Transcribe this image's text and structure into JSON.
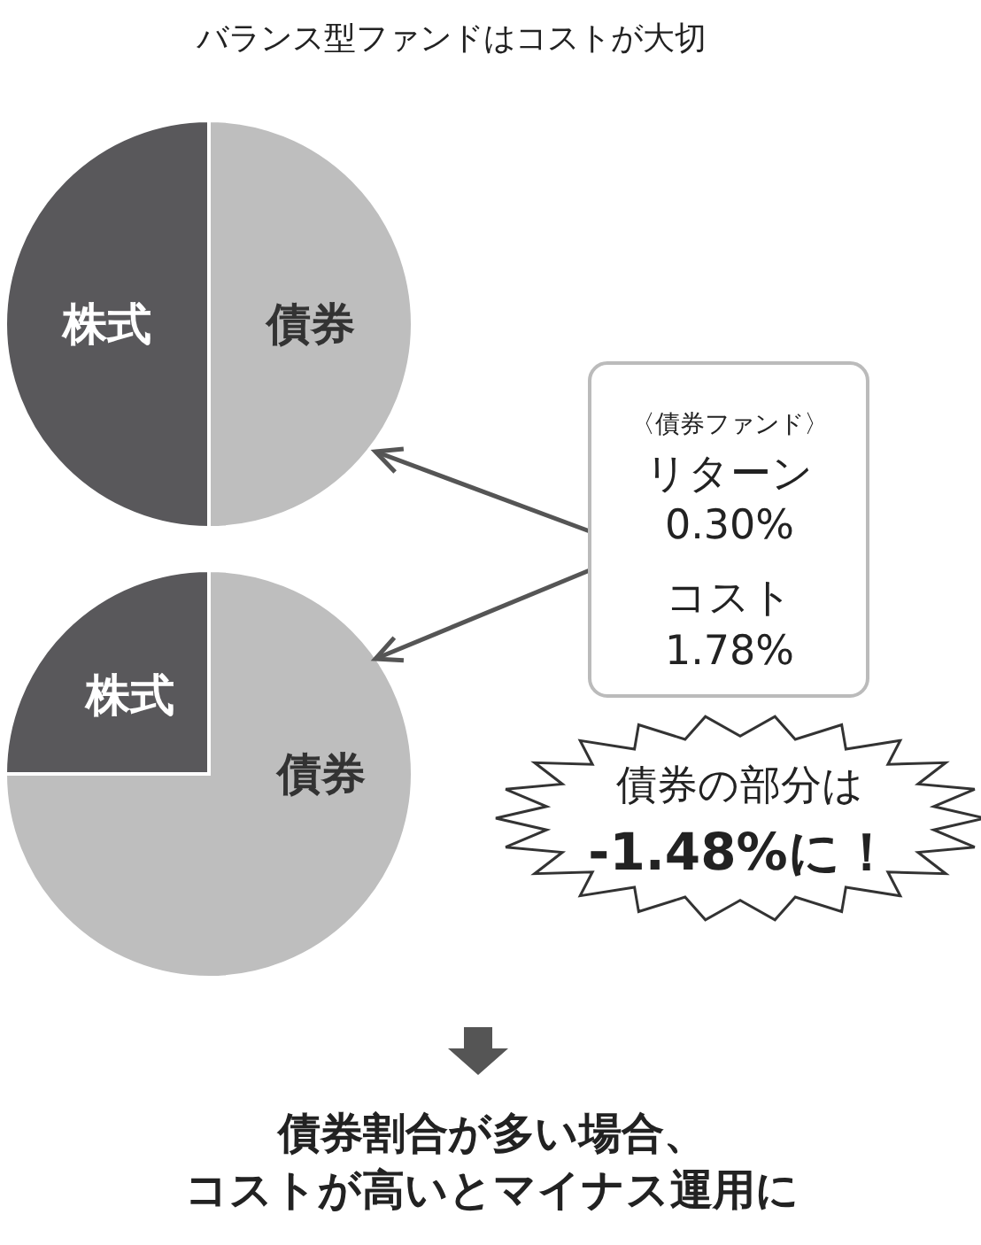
{
  "chart_data": [
    {
      "type": "pie",
      "title": "バランス型ファンドはコストが大切",
      "categories": [
        "株式",
        "債券"
      ],
      "values": [
        50,
        50
      ],
      "colors": [
        "#59585b",
        "#bebebe"
      ]
    },
    {
      "type": "pie",
      "categories": [
        "株式",
        "債券"
      ],
      "values": [
        25,
        75
      ],
      "colors": [
        "#59585b",
        "#bebebe"
      ],
      "annotations": [
        "〈債券ファンド〉",
        "リターン",
        "0.30%",
        "コスト",
        "1.78%",
        "債券の部分は",
        "-1.48%に！",
        "債券割合が多い場合、",
        "コストが高いとマイナス運用に"
      ]
    }
  ]
}
